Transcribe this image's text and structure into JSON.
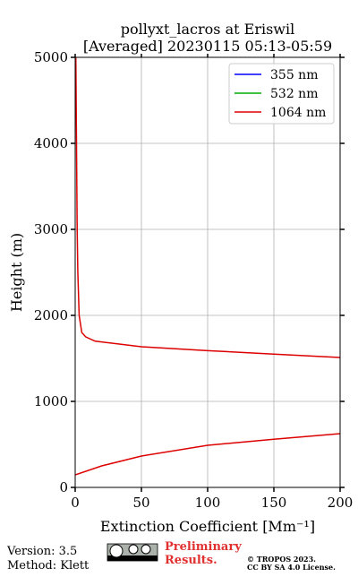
{
  "chart_data": {
    "type": "line",
    "orientation": "vertical-profile",
    "title": "pollyxt_lacros at Eriswil",
    "subtitle": "[Averaged] 20230115 05:13-05:59",
    "xlabel": "Extinction Coefficient [Mm⁻¹]",
    "ylabel": "Height (m)",
    "y": [
      146,
      250,
      365,
      490,
      560,
      625,
      1000,
      1510,
      1550,
      1590,
      1635,
      1700,
      1750,
      1800,
      2000,
      2500,
      3000,
      4000,
      5000
    ],
    "series": [
      {
        "name": "355 nm",
        "color": "#0000ff",
        "values": [
          null,
          null,
          null,
          null,
          null,
          null,
          null,
          null,
          null,
          null,
          null,
          null,
          null,
          null,
          null,
          null,
          null,
          null,
          null
        ]
      },
      {
        "name": "532 nm",
        "color": "#00b000",
        "values": [
          null,
          null,
          null,
          null,
          null,
          null,
          null,
          null,
          null,
          null,
          null,
          null,
          null,
          null,
          null,
          null,
          null,
          null,
          null
        ]
      },
      {
        "name": "1064 nm",
        "color": "#dd0000",
        "values": [
          0,
          20,
          50,
          100,
          150,
          200,
          null,
          200,
          150,
          100,
          50,
          15,
          8,
          5,
          3,
          2,
          1.5,
          1,
          0.5
        ]
      }
    ],
    "xlim": [
      0,
      200
    ],
    "xticks": [
      0,
      50,
      100,
      150,
      200
    ],
    "ylim": [
      0,
      5000
    ],
    "yticks": [
      0,
      1000,
      2000,
      3000,
      4000,
      5000
    ],
    "grid": true,
    "legend": "upper right"
  },
  "footer": {
    "version": "Version: 3.5",
    "method": "Method: Klett",
    "notice": [
      "Preliminary",
      "Results."
    ],
    "copyright": [
      "© TROPOS 2023.",
      "CC BY SA 4.0 License."
    ]
  }
}
